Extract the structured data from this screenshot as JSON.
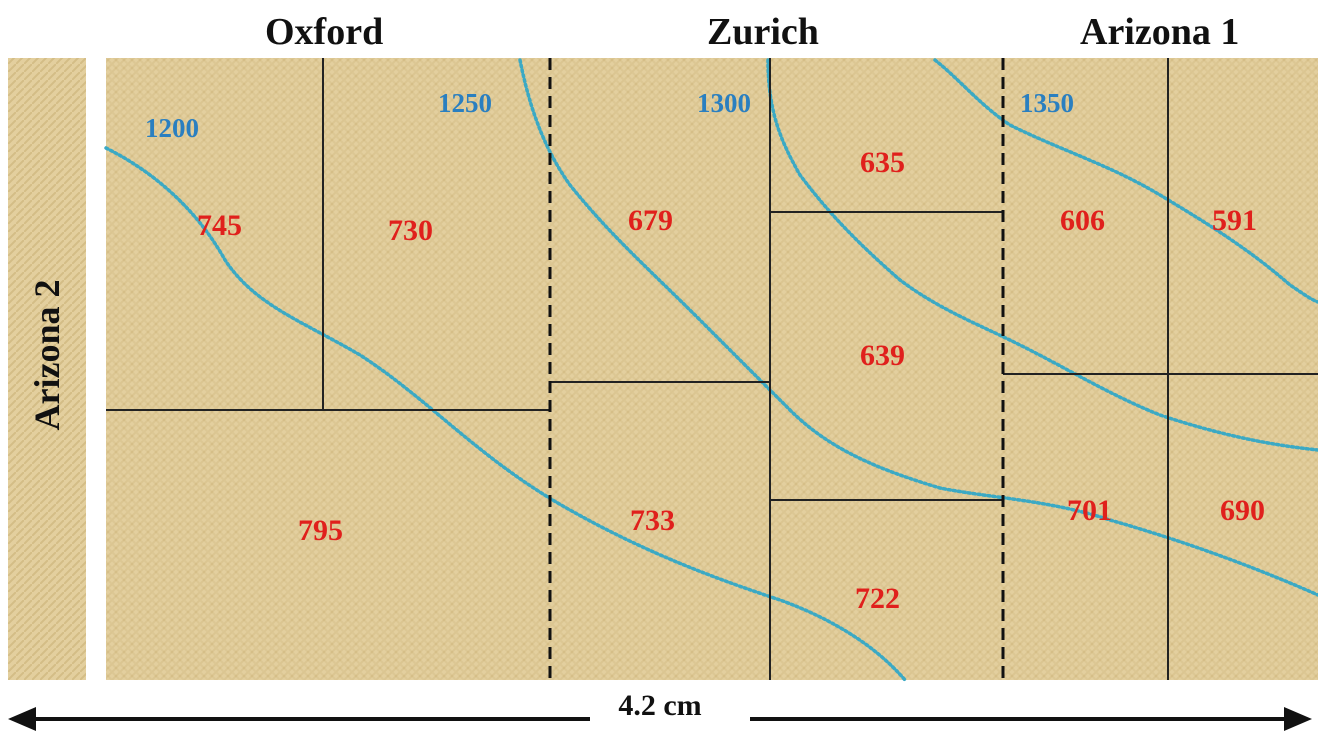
{
  "labs": {
    "oxford": "Oxford",
    "zurich": "Zurich",
    "arizona1": "Arizona 1",
    "arizona2": "Arizona 2"
  },
  "scale_label": "4.2 cm",
  "contours": [
    {
      "label": "1200"
    },
    {
      "label": "1250"
    },
    {
      "label": "1300"
    },
    {
      "label": "1350"
    }
  ],
  "samples": [
    {
      "id": "ox-a",
      "value": "745"
    },
    {
      "id": "ox-b",
      "value": "730"
    },
    {
      "id": "ox-c",
      "value": "795"
    },
    {
      "id": "zu-a",
      "value": "679"
    },
    {
      "id": "zu-b",
      "value": "635"
    },
    {
      "id": "zu-c",
      "value": "639"
    },
    {
      "id": "zu-d",
      "value": "733"
    },
    {
      "id": "zu-e",
      "value": "722"
    },
    {
      "id": "az-a",
      "value": "606"
    },
    {
      "id": "az-b",
      "value": "591"
    },
    {
      "id": "az-c",
      "value": "701"
    },
    {
      "id": "az-d",
      "value": "690"
    }
  ],
  "colors": {
    "cloth": "#e3cf9e",
    "cloth_dark": "#d6bf88",
    "contour": "#3ba9c4",
    "contour_label": "#2a7fc0",
    "sample_value": "#e0201c",
    "divider": "#222222"
  }
}
